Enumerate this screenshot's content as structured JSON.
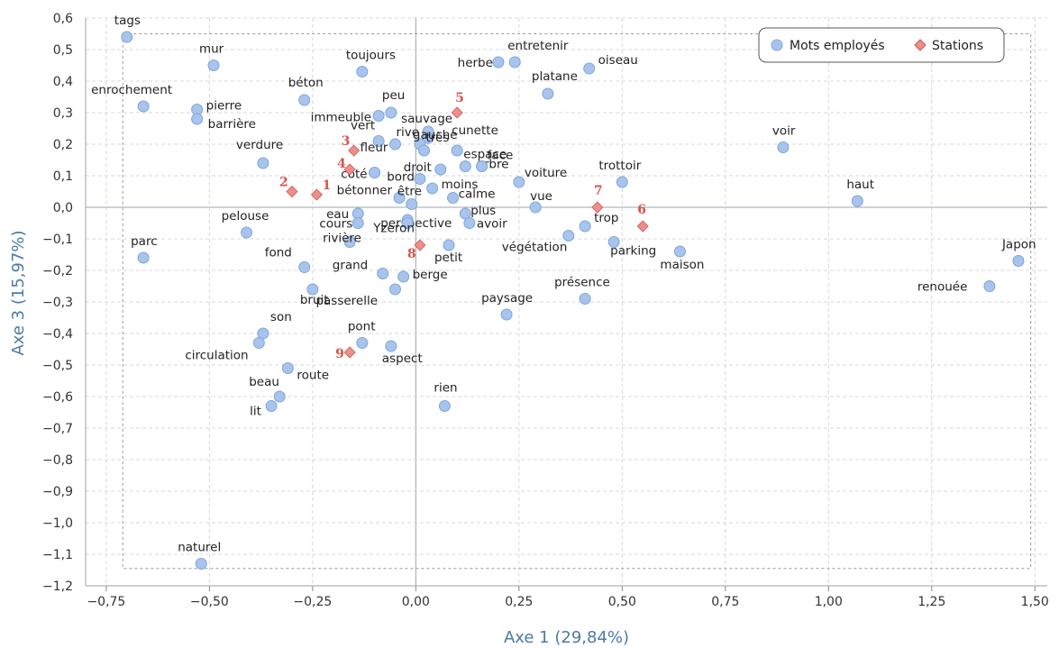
{
  "chart_data": {
    "type": "scatter",
    "xlabel": "Axe 1 (29,84%)",
    "ylabel": "Axe 3 (15,97%)",
    "xlim": [
      -0.8,
      1.53
    ],
    "ylim": [
      -1.2,
      0.6
    ],
    "x_ticks": [
      -0.75,
      -0.5,
      -0.25,
      0,
      0.25,
      0.5,
      0.75,
      1,
      1.25,
      1.5
    ],
    "x_tick_labels": [
      "−0,75",
      "−0,50",
      "−0,25",
      "0,00",
      "0,25",
      "0,50",
      "0,75",
      "1,00",
      "1,25",
      "1,50"
    ],
    "y_ticks": [
      0.6,
      0.5,
      0.4,
      0.3,
      0.2,
      0.1,
      0,
      -0.1,
      -0.2,
      -0.3,
      -0.4,
      -0.5,
      -0.6,
      -0.7,
      -0.8,
      -0.9,
      -1.0,
      -1.1,
      -1.2
    ],
    "y_tick_labels": [
      "0,6",
      "0,5",
      "0,4",
      "0,3",
      "0,2",
      "0,1",
      "0,0",
      "−0,1",
      "−0,2",
      "−0,3",
      "−0,4",
      "−0,5",
      "−0,6",
      "−0,7",
      "−0,8",
      "−0,9",
      "−1,0",
      "−1,1",
      "−1,2"
    ],
    "grid": true,
    "legend_position": "top-right",
    "colors": {
      "words": "#a8c4ec",
      "words_stroke": "#7fa6dc",
      "stations": "#e8908c",
      "stations_stroke": "#d9534f",
      "axis_title": "#4a7ba7"
    },
    "series": [
      {
        "name": "Mots employés",
        "marker": "circle",
        "points": [
          {
            "label": "tags",
            "x": -0.7,
            "y": 0.54
          },
          {
            "label": "mur",
            "x": -0.49,
            "y": 0.45
          },
          {
            "label": "toujours",
            "x": -0.13,
            "y": 0.43
          },
          {
            "label": "herbe",
            "x": 0.2,
            "y": 0.46
          },
          {
            "label": "entretenir",
            "x": 0.24,
            "y": 0.46
          },
          {
            "label": "oiseau",
            "x": 0.42,
            "y": 0.44
          },
          {
            "label": "enrochement",
            "x": -0.66,
            "y": 0.32
          },
          {
            "label": "pierre",
            "x": -0.53,
            "y": 0.31
          },
          {
            "label": "barrière",
            "x": -0.53,
            "y": 0.28
          },
          {
            "label": "béton",
            "x": -0.27,
            "y": 0.34
          },
          {
            "label": "platane",
            "x": 0.32,
            "y": 0.36
          },
          {
            "label": "peu",
            "x": -0.06,
            "y": 0.3
          },
          {
            "label": "immeuble",
            "x": -0.09,
            "y": 0.29
          },
          {
            "label": "sauvage",
            "x": 0.03,
            "y": 0.24
          },
          {
            "label": "rive",
            "x": 0.03,
            "y": 0.22
          },
          {
            "label": "cunette",
            "x": 0.1,
            "y": 0.18
          },
          {
            "label": "vert",
            "x": -0.09,
            "y": 0.21
          },
          {
            "label": "fleur",
            "x": -0.05,
            "y": 0.2
          },
          {
            "label": "gauche",
            "x": 0.01,
            "y": 0.2
          },
          {
            "label": "très",
            "x": 0.02,
            "y": 0.18
          },
          {
            "label": "espace",
            "x": 0.12,
            "y": 0.13
          },
          {
            "label": "arbre",
            "x": 0.16,
            "y": 0.13
          },
          {
            "label": "face",
            "x": 0.16,
            "y": 0.13
          },
          {
            "label": "verdure",
            "x": -0.37,
            "y": 0.14
          },
          {
            "label": "droit",
            "x": 0.06,
            "y": 0.12
          },
          {
            "label": "voiture",
            "x": 0.25,
            "y": 0.08
          },
          {
            "label": "trottoir",
            "x": 0.5,
            "y": 0.08
          },
          {
            "label": "voir",
            "x": 0.89,
            "y": 0.19
          },
          {
            "label": "côté",
            "x": -0.1,
            "y": 0.11
          },
          {
            "label": "bord",
            "x": 0.01,
            "y": 0.09
          },
          {
            "label": "moins",
            "x": 0.04,
            "y": 0.06
          },
          {
            "label": "bétonner",
            "x": -0.04,
            "y": 0.03
          },
          {
            "label": "être",
            "x": -0.01,
            "y": 0.01
          },
          {
            "label": "calme",
            "x": 0.09,
            "y": 0.03
          },
          {
            "label": "vue",
            "x": 0.29,
            "y": 0.0
          },
          {
            "label": "haut",
            "x": 1.07,
            "y": 0.02
          },
          {
            "label": "eau",
            "x": -0.14,
            "y": -0.02
          },
          {
            "label": "perspective",
            "x": -0.02,
            "y": -0.04
          },
          {
            "label": "plus",
            "x": 0.12,
            "y": -0.02
          },
          {
            "label": "avoir",
            "x": 0.13,
            "y": -0.05
          },
          {
            "label": "cours",
            "x": -0.14,
            "y": -0.05
          },
          {
            "label": "Yzeron",
            "x": -0.02,
            "y": -0.05
          },
          {
            "label": "pelouse",
            "x": -0.41,
            "y": -0.08
          },
          {
            "label": "rivière",
            "x": -0.16,
            "y": -0.11
          },
          {
            "label": "petit",
            "x": 0.08,
            "y": -0.12
          },
          {
            "label": "trop",
            "x": 0.41,
            "y": -0.06
          },
          {
            "label": "végétation",
            "x": 0.37,
            "y": -0.09
          },
          {
            "label": "parking",
            "x": 0.48,
            "y": -0.11
          },
          {
            "label": "maison",
            "x": 0.64,
            "y": -0.14
          },
          {
            "label": "Japon",
            "x": 1.46,
            "y": -0.17
          },
          {
            "label": "parc",
            "x": -0.66,
            "y": -0.16
          },
          {
            "label": "fond",
            "x": -0.27,
            "y": -0.19
          },
          {
            "label": "grand",
            "x": -0.08,
            "y": -0.21
          },
          {
            "label": "berge",
            "x": -0.03,
            "y": -0.22
          },
          {
            "label": "passerelle",
            "x": -0.05,
            "y": -0.26
          },
          {
            "label": "bruit",
            "x": -0.25,
            "y": -0.26
          },
          {
            "label": "présence",
            "x": 0.41,
            "y": -0.29
          },
          {
            "label": "renouée",
            "x": 1.39,
            "y": -0.25
          },
          {
            "label": "paysage",
            "x": 0.22,
            "y": -0.34
          },
          {
            "label": "son",
            "x": -0.37,
            "y": -0.4
          },
          {
            "label": "pont",
            "x": -0.13,
            "y": -0.43
          },
          {
            "label": "circulation",
            "x": -0.38,
            "y": -0.43
          },
          {
            "label": "aspect",
            "x": -0.06,
            "y": -0.44
          },
          {
            "label": "route",
            "x": -0.31,
            "y": -0.51
          },
          {
            "label": "beau",
            "x": -0.33,
            "y": -0.6
          },
          {
            "label": "lit",
            "x": -0.35,
            "y": -0.63
          },
          {
            "label": "rien",
            "x": 0.07,
            "y": -0.63
          },
          {
            "label": "naturel",
            "x": -0.52,
            "y": -1.13
          }
        ]
      },
      {
        "name": "Stations",
        "marker": "diamond",
        "points": [
          {
            "label": "1",
            "x": -0.24,
            "y": 0.04
          },
          {
            "label": "2",
            "x": -0.3,
            "y": 0.05
          },
          {
            "label": "3",
            "x": -0.15,
            "y": 0.18
          },
          {
            "label": "4",
            "x": -0.16,
            "y": 0.12
          },
          {
            "label": "5",
            "x": 0.1,
            "y": 0.3
          },
          {
            "label": "6",
            "x": 0.55,
            "y": -0.06
          },
          {
            "label": "7",
            "x": 0.44,
            "y": 0.0
          },
          {
            "label": "8",
            "x": 0.01,
            "y": -0.12
          },
          {
            "label": "9",
            "x": -0.16,
            "y": -0.46
          }
        ]
      }
    ]
  }
}
